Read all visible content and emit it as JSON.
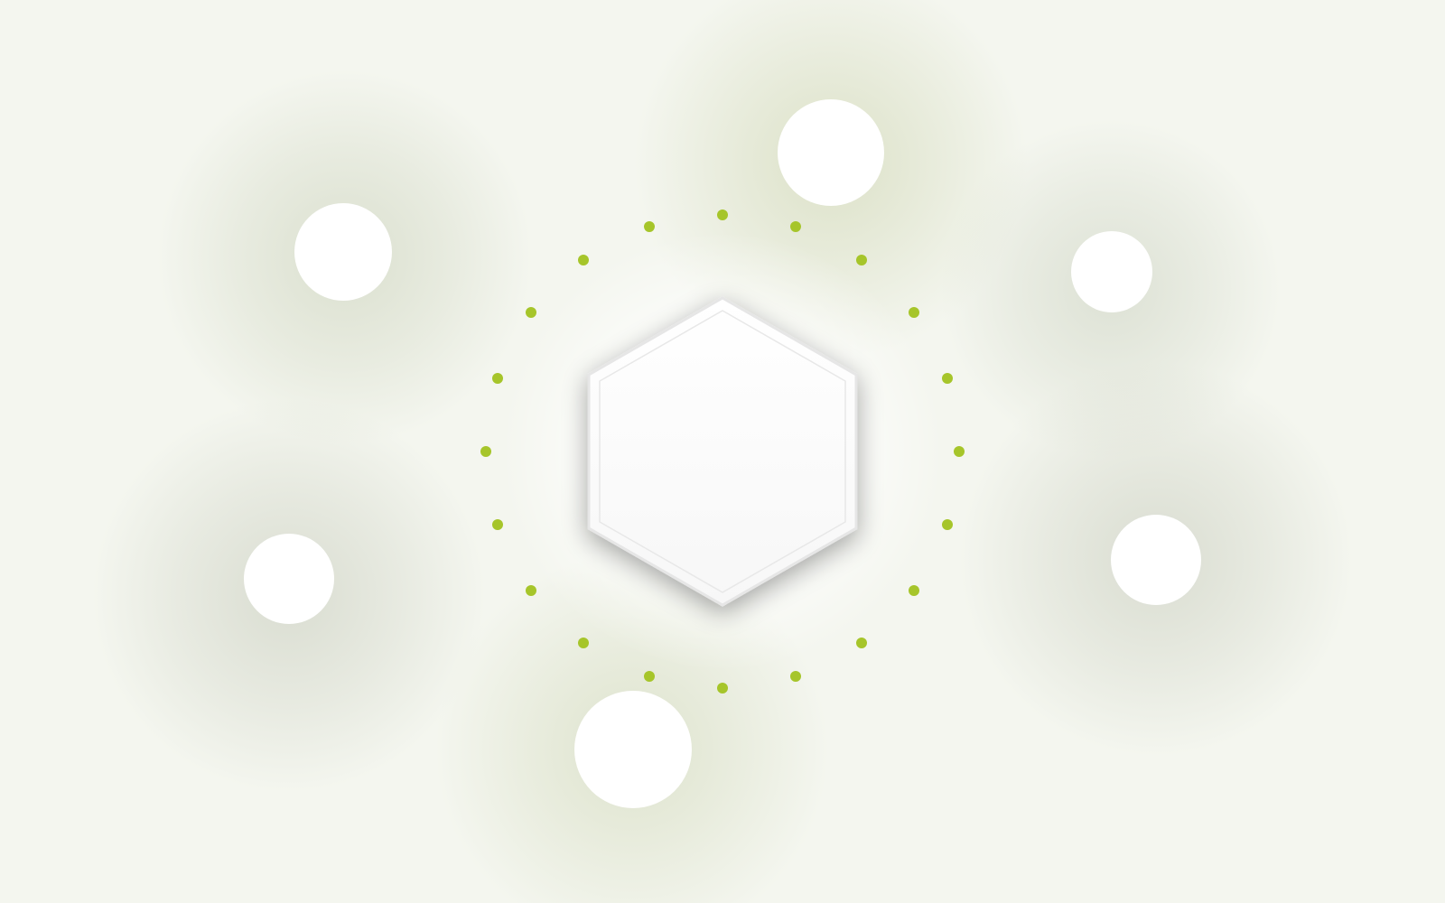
{
  "scene": {
    "background_color": "#f4f6ef",
    "glow_color": "#d9dec9",
    "node_color": "#ffffff",
    "dot_color": "#a6c52a",
    "hub_fill": "#ffffff",
    "hub_edge": "#e4e4e4",
    "node_count": 6,
    "dot_count": 20
  }
}
